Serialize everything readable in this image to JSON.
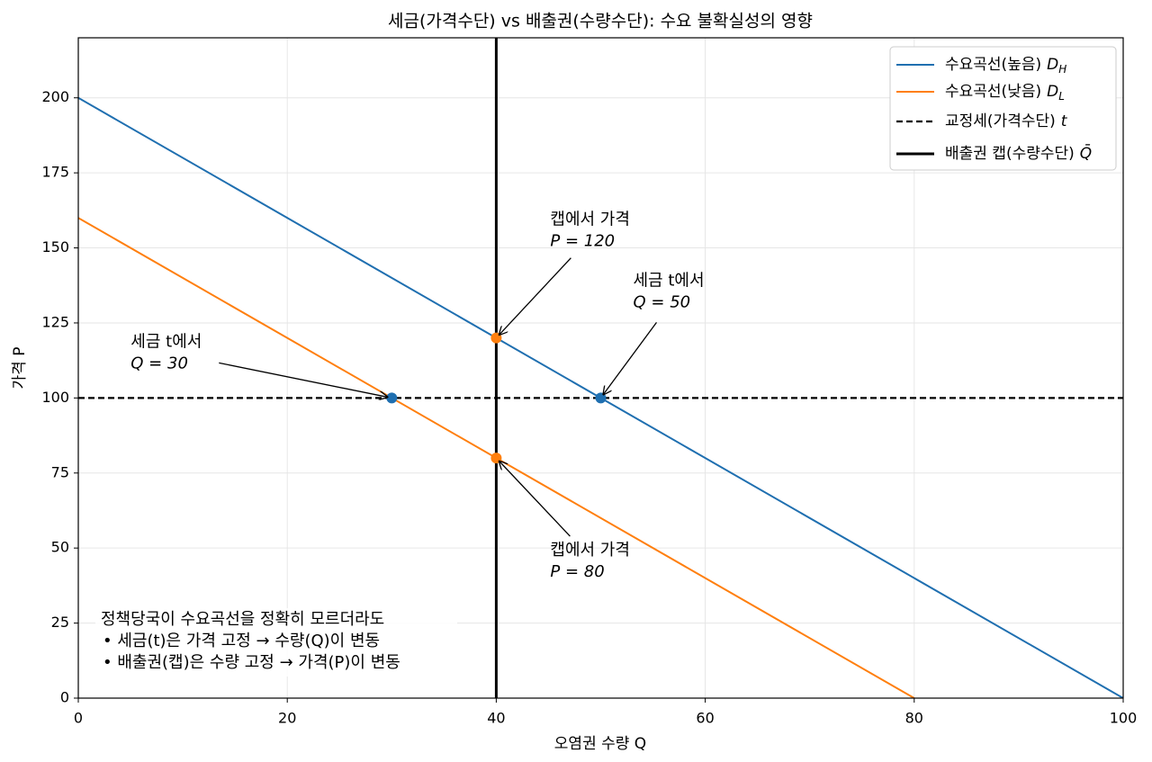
{
  "chart_data": {
    "type": "line",
    "title": "세금(가격수단) vs 배출권(수량수단): 수요 불확실성의 영향",
    "x_label": "오염권 수량 Q",
    "y_label": "가격 P",
    "xlim": [
      0,
      100
    ],
    "ylim": [
      0,
      220
    ],
    "xticks": [
      0,
      20,
      40,
      60,
      80,
      100
    ],
    "yticks": [
      0,
      25,
      50,
      75,
      100,
      125,
      150,
      175,
      200
    ],
    "grid": true,
    "legend": "upper right",
    "series": [
      {
        "name": "수요곡선(높음)",
        "symbol": "D",
        "subscript": "H",
        "color": "#1f6fb0",
        "style": "solid",
        "width": 2,
        "x": [
          0,
          100
        ],
        "values": [
          200,
          0
        ]
      },
      {
        "name": "수요곡선(낮음)",
        "symbol": "D",
        "subscript": "L",
        "color": "#ff7f0e",
        "style": "solid",
        "width": 2,
        "x": [
          0,
          80
        ],
        "values": [
          160,
          0
        ]
      },
      {
        "name": "교정세(가격수단)",
        "symbol": "t",
        "color": "#000000",
        "style": "dashed",
        "width": 2.2,
        "x": [
          0,
          100
        ],
        "values": [
          100,
          100
        ]
      },
      {
        "name": "배출권 캡(수량수단)",
        "symbol": "Q̄",
        "color": "#000000",
        "style": "solid",
        "width": 3,
        "x": [
          40,
          40
        ],
        "values": [
          0,
          220
        ]
      }
    ],
    "points": [
      {
        "x": 30,
        "y": 100,
        "color": "#1f6fb0"
      },
      {
        "x": 50,
        "y": 100,
        "color": "#1f6fb0"
      },
      {
        "x": 40,
        "y": 120,
        "color": "#ff7f0e"
      },
      {
        "x": 40,
        "y": 80,
        "color": "#ff7f0e"
      }
    ],
    "annotations": [
      {
        "text": [
          "캡에서 가격",
          "P = 120"
        ],
        "target": 2
      },
      {
        "text": [
          "세금 t에서",
          "Q = 50"
        ],
        "target": 1
      },
      {
        "text": [
          "세금 t에서",
          "Q = 30"
        ],
        "target": 0
      },
      {
        "text": [
          "캡에서 가격",
          "P = 80"
        ],
        "target": 3
      }
    ],
    "note": [
      "정책당국이 수요곡선을 정확히 모르더라도",
      "•  세금(t)은 가격 고정 → 수량(Q)이 변동",
      "•  배출권(캡)은 수량 고정 → 가격(P)이 변동"
    ]
  }
}
